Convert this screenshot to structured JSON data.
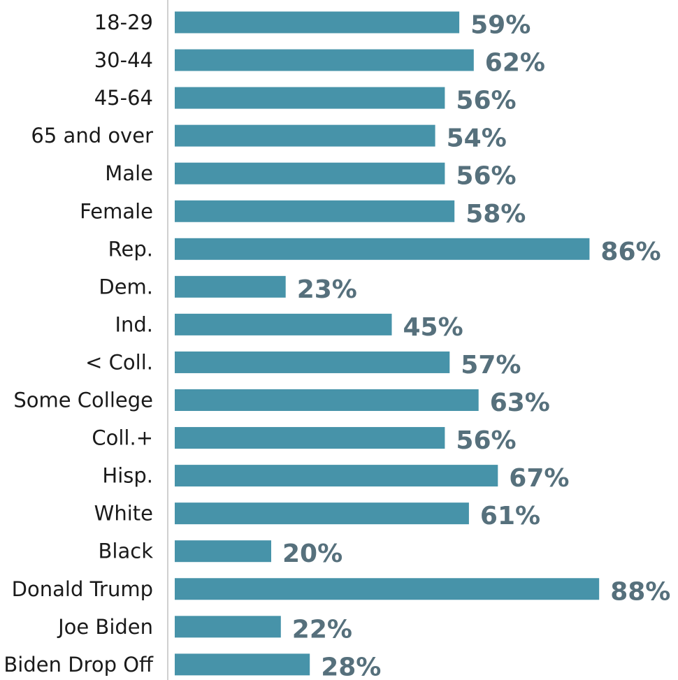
{
  "chart_data": {
    "type": "bar",
    "orientation": "horizontal",
    "categories": [
      "18-29",
      "30-44",
      "45-64",
      "65 and over",
      "Male",
      "Female",
      "Rep.",
      "Dem.",
      "Ind.",
      "< Coll.",
      "Some College",
      "Coll.+",
      "Hisp.",
      "White",
      "Black",
      "Donald Trump",
      "Joe Biden",
      "Biden Drop Off"
    ],
    "values": [
      59,
      62,
      56,
      54,
      56,
      58,
      86,
      23,
      45,
      57,
      63,
      56,
      67,
      61,
      20,
      88,
      22,
      28
    ],
    "value_labels": [
      "59%",
      "62%",
      "56%",
      "54%",
      "56%",
      "58%",
      "86%",
      "23%",
      "45%",
      "57%",
      "63%",
      "56%",
      "67%",
      "61%",
      "20%",
      "88%",
      "22%",
      "28%"
    ],
    "unit": "%",
    "title": "",
    "xlabel": "",
    "ylabel": "",
    "xlim": [
      0,
      100
    ],
    "grid": false,
    "legend": "none",
    "colors": {
      "bar": "#4793a9",
      "value_label": "#56707c",
      "category_label": "#1a1a1a",
      "axis": "#d0d0d0"
    }
  }
}
